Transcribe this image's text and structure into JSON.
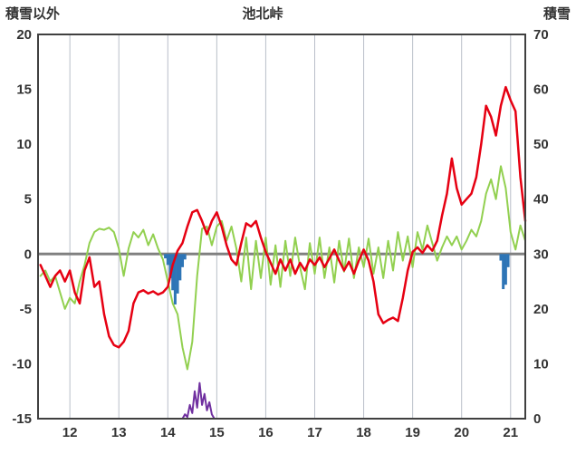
{
  "chart_data": {
    "type": "line",
    "title": "池北峠",
    "left_axis_title": "積雪以外",
    "right_axis_title": "積雪",
    "x_range": [
      11.35,
      21.3
    ],
    "left_range": [
      -15,
      20
    ],
    "right_range": [
      0,
      70
    ],
    "x_ticks": [
      12,
      13,
      14,
      15,
      16,
      17,
      18,
      19,
      20,
      21
    ],
    "left_ticks": [
      20,
      15,
      10,
      5,
      0,
      -5,
      -10,
      -15
    ],
    "right_ticks": [
      70,
      60,
      50,
      40,
      30,
      20,
      10,
      0
    ],
    "grid": "vertical-only",
    "legend": "none",
    "colors": {
      "red_line": "#e60012",
      "green_line": "#92d050",
      "blue_bars": "#2e75b6",
      "purple_line": "#7030a0",
      "grid": "#b9bfc9",
      "zero_line": "#808080",
      "frame": "#404040",
      "text": "#333333",
      "background": "#ffffff"
    },
    "series": [
      {
        "name": "blue-bars",
        "type": "bar",
        "axis": "left",
        "color": "#2e75b6",
        "points": [
          [
            13.95,
            -0.4
          ],
          [
            14.0,
            -1.0
          ],
          [
            14.05,
            -2.2
          ],
          [
            14.1,
            -3.3
          ],
          [
            14.15,
            -4.6
          ],
          [
            14.2,
            -3.6
          ],
          [
            14.25,
            -2.4
          ],
          [
            14.3,
            -1.2
          ],
          [
            14.35,
            -0.5
          ],
          [
            20.8,
            -0.6
          ],
          [
            20.85,
            -3.2
          ],
          [
            20.9,
            -2.8
          ],
          [
            20.95,
            -1.2
          ]
        ]
      },
      {
        "name": "green-line",
        "type": "line",
        "axis": "left",
        "color": "#92d050",
        "width": 2,
        "x_start": 11.4,
        "x_step": 0.1,
        "values": [
          -2,
          -1.5,
          -2.5,
          -2,
          -3.5,
          -5,
          -4,
          -4.5,
          -2.5,
          -1,
          1,
          2,
          2.3,
          2.2,
          2.4,
          2,
          0.5,
          -2,
          0.5,
          2,
          1.5,
          2.2,
          0.8,
          1.8,
          0.5,
          -0.5,
          -2.5,
          -4.5,
          -5.5,
          -8.5,
          -10.5,
          -8,
          -2,
          2.3,
          2.5,
          0.8,
          2.5,
          3,
          1.2,
          2.5,
          0.5,
          -2.5,
          1.5,
          -3.2,
          1.2,
          -2.2,
          1.5,
          -2.8,
          0.8,
          -3,
          1.2,
          -2,
          1.5,
          -1.2,
          -3.2,
          1,
          -1.8,
          1.5,
          -2.2,
          0.6,
          -2.6,
          1.2,
          -1.6,
          1.4,
          -2.2,
          0.6,
          -1.2,
          1.4,
          -1.8,
          0.6,
          -2.2,
          1.2,
          -1.5,
          2,
          -0.6,
          1.6,
          -1.2,
          2,
          0.4,
          2.6,
          1,
          -0.6,
          0.6,
          1.6,
          0.8,
          1.6,
          0.4,
          1.2,
          2.2,
          1.6,
          3,
          5.5,
          6.8,
          5,
          8,
          6,
          2,
          0.4,
          2.6,
          1.2
        ]
      },
      {
        "name": "red-line",
        "type": "line",
        "axis": "left",
        "color": "#e60012",
        "width": 2.5,
        "x_start": 11.4,
        "x_step": 0.1,
        "values": [
          -1,
          -2,
          -3,
          -2,
          -1.5,
          -2.5,
          -1.5,
          -3.5,
          -4.5,
          -1.5,
          -0.3,
          -3,
          -2.5,
          -5.5,
          -7.5,
          -8.3,
          -8.5,
          -8,
          -7,
          -4.5,
          -3.5,
          -3.3,
          -3.6,
          -3.4,
          -3.7,
          -3.5,
          -3,
          -1,
          0.3,
          1,
          2.5,
          3.8,
          4,
          3,
          1.8,
          3,
          3.8,
          2.5,
          0.8,
          -0.5,
          -1,
          1,
          2.8,
          2.5,
          3,
          1.5,
          0.2,
          -0.8,
          -1.8,
          -0.5,
          -1.5,
          -0.5,
          -1.8,
          -0.8,
          -1.5,
          -0.5,
          -1,
          -0.3,
          -1.2,
          -0.4,
          0.4,
          -0.6,
          -1.5,
          -0.7,
          -1.8,
          -0.6,
          0.4,
          -0.6,
          -2.5,
          -5.5,
          -6.3,
          -6,
          -5.8,
          -6.1,
          -4,
          -1.5,
          0.2,
          0.6,
          0.1,
          0.8,
          0.3,
          1.2,
          3.5,
          5.5,
          8.7,
          6,
          4.5,
          5,
          5.5,
          7,
          10,
          13.5,
          12.5,
          10.8,
          13.5,
          15.2,
          14,
          13,
          7,
          3
        ]
      },
      {
        "name": "purple-line",
        "type": "line",
        "axis": "right",
        "color": "#7030a0",
        "width": 2,
        "points": [
          [
            11.35,
            0
          ],
          [
            14.3,
            0
          ],
          [
            14.35,
            0.8
          ],
          [
            14.4,
            0.3
          ],
          [
            14.45,
            2.5
          ],
          [
            14.5,
            1
          ],
          [
            14.55,
            5
          ],
          [
            14.6,
            2
          ],
          [
            14.65,
            6.5
          ],
          [
            14.7,
            2.5
          ],
          [
            14.75,
            4.5
          ],
          [
            14.8,
            1.5
          ],
          [
            14.85,
            3
          ],
          [
            14.9,
            0.8
          ],
          [
            14.95,
            0
          ],
          [
            21.3,
            0
          ]
        ]
      }
    ]
  }
}
